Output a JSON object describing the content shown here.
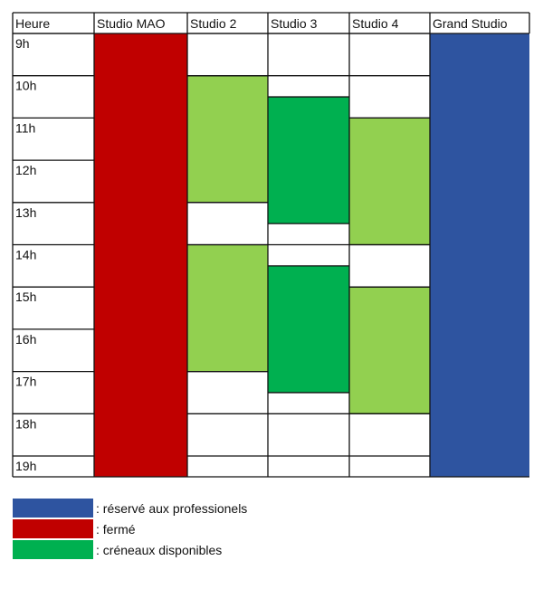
{
  "colors": {
    "pro": "#2e54a0",
    "closed": "#c00000",
    "open_dark": "#00b050",
    "open_light": "#92d050",
    "border": "#111111"
  },
  "timetable": {
    "corner_label": "Heure",
    "columns": [
      "Studio MAO",
      "Studio 2",
      "Studio 3",
      "Studio 4",
      "Grand Studio"
    ],
    "hours": [
      "9h",
      "10h",
      "11h",
      "12h",
      "13h",
      "14h",
      "15h",
      "16h",
      "17h",
      "18h",
      "19h"
    ],
    "blocks": [
      {
        "column": 0,
        "start": 9,
        "end": 19.5,
        "status": "closed"
      },
      {
        "column": 1,
        "start": 10,
        "end": 13,
        "status": "open_light"
      },
      {
        "column": 1,
        "start": 14,
        "end": 17,
        "status": "open_light"
      },
      {
        "column": 2,
        "start": 10.5,
        "end": 13.5,
        "status": "open_dark"
      },
      {
        "column": 2,
        "start": 14.5,
        "end": 17.5,
        "status": "open_dark"
      },
      {
        "column": 3,
        "start": 11,
        "end": 14,
        "status": "open_light"
      },
      {
        "column": 3,
        "start": 15,
        "end": 18,
        "status": "open_light"
      },
      {
        "column": 4,
        "start": 9,
        "end": 19.5,
        "status": "pro"
      }
    ]
  },
  "legend": [
    {
      "status": "pro",
      "label": ": réservé aux professionels"
    },
    {
      "status": "closed",
      "label": ": fermé"
    },
    {
      "status": "open_dark",
      "label": ": créneaux disponibles"
    }
  ]
}
